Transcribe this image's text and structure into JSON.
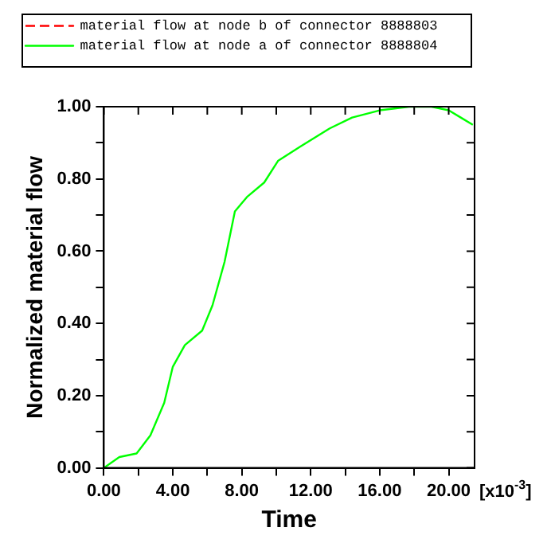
{
  "chart_data": {
    "type": "line",
    "xlabel": "Time",
    "ylabel": "Normalized material flow",
    "annotations": [
      "[x10$^{-3}$]"
    ],
    "x": [
      0,
      0.9,
      1.9,
      2.7,
      3.5,
      4.0,
      4.7,
      5.7,
      6.3,
      7.0,
      7.6,
      8.3,
      9.3,
      10.1,
      11.4,
      13.1,
      14.4,
      16.0,
      17.7,
      19.0,
      20.0,
      20.7,
      21.4
    ],
    "series": [
      {
        "name": "material flow at node b of connector 8888803",
        "color": "#ff0000",
        "line_style": "dashed",
        "values": [
          null,
          null,
          null,
          null,
          null,
          null,
          null,
          null,
          null,
          null,
          null,
          null,
          null,
          null,
          null,
          null,
          null,
          null,
          null,
          null,
          null,
          null,
          null
        ]
      },
      {
        "name": "material flow at node a of connector 8888804",
        "color": "#00ff00",
        "line_style": "solid",
        "values": [
          0,
          0.03,
          0.04,
          0.09,
          0.18,
          0.28,
          0.34,
          0.38,
          0.45,
          0.57,
          0.71,
          0.75,
          0.79,
          0.85,
          0.89,
          0.94,
          0.97,
          0.99,
          1.0,
          1.0,
          0.99,
          0.97,
          0.95
        ]
      }
    ],
    "xlim": [
      0,
      21.5
    ],
    "ylim": [
      0,
      1
    ],
    "xticks": [
      {
        "value": 0,
        "label": "0.00"
      },
      {
        "value": 2,
        "label": null
      },
      {
        "value": 4,
        "label": "4.00"
      },
      {
        "value": 6,
        "label": null
      },
      {
        "value": 8,
        "label": "8.00"
      },
      {
        "value": 10,
        "label": null
      },
      {
        "value": 12,
        "label": "12.00"
      },
      {
        "value": 14,
        "label": null
      },
      {
        "value": 16,
        "label": "16.00"
      },
      {
        "value": 18,
        "label": null
      },
      {
        "value": 20,
        "label": "20.00"
      }
    ],
    "yticks": [
      {
        "value": 0,
        "label": "0.00"
      },
      {
        "value": 0.1,
        "label": null
      },
      {
        "value": 0.2,
        "label": "0.20"
      },
      {
        "value": 0.3,
        "label": null
      },
      {
        "value": 0.4,
        "label": "0.40"
      },
      {
        "value": 0.5,
        "label": null
      },
      {
        "value": 0.6,
        "label": "0.60"
      },
      {
        "value": 0.7,
        "label": null
      },
      {
        "value": 0.8,
        "label": "0.80"
      },
      {
        "value": 0.9,
        "label": null
      },
      {
        "value": 1,
        "label": "1.00"
      }
    ],
    "grid": false,
    "legend": "top",
    "marker": "none"
  }
}
